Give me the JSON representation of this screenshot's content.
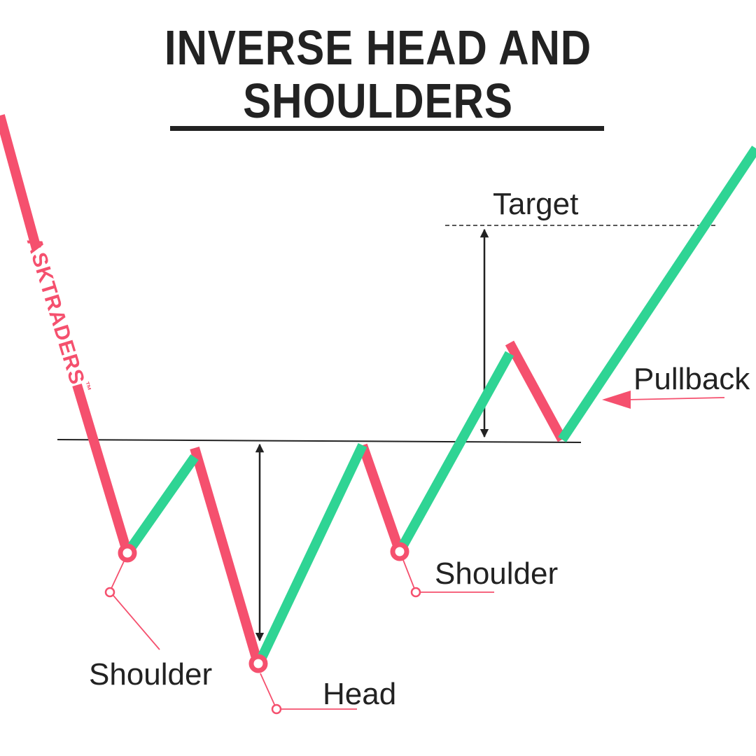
{
  "title": {
    "line1": "INVERSE HEAD AND",
    "line2": "SHOULDERS"
  },
  "labels": {
    "target": "Target",
    "pullback": "Pullback",
    "shoulder_left": "Shoulder",
    "head": "Head",
    "shoulder_right": "Shoulder"
  },
  "brand": {
    "name": "ASKTRADERS",
    "mark": "™"
  },
  "colors": {
    "down": "#f5506e",
    "up": "#2fd494",
    "text": "#222222"
  }
}
